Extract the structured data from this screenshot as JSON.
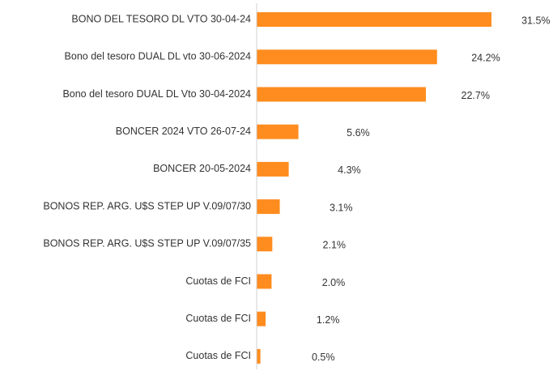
{
  "chart_data": {
    "type": "bar",
    "orientation": "horizontal",
    "categories": [
      "BONO DEL TESORO DL VTO 30-04-24",
      "Bono del tesoro DUAL DL vto 30-06-2024",
      "Bono del tesoro DUAL DL Vto 30-04-2024",
      "BONCER 2024 VTO 26-07-24",
      "BONCER 20-05-2024",
      "BONOS REP. ARG. U$S STEP UP V.09/07/30",
      "BONOS REP. ARG. U$S STEP UP V.09/07/35",
      "Cuotas de FCI",
      "Cuotas de FCI",
      "Cuotas de FCI"
    ],
    "values": [
      31.5,
      24.2,
      22.7,
      5.6,
      4.3,
      3.1,
      2.1,
      2.0,
      1.2,
      0.5
    ],
    "value_labels": [
      "31.5%",
      "24.2%",
      "22.7%",
      "5.6%",
      "4.3%",
      "3.1%",
      "2.1%",
      "2.0%",
      "1.2%",
      "0.5%"
    ],
    "color": "#ff8c1e",
    "xlim": [
      0,
      35
    ]
  }
}
